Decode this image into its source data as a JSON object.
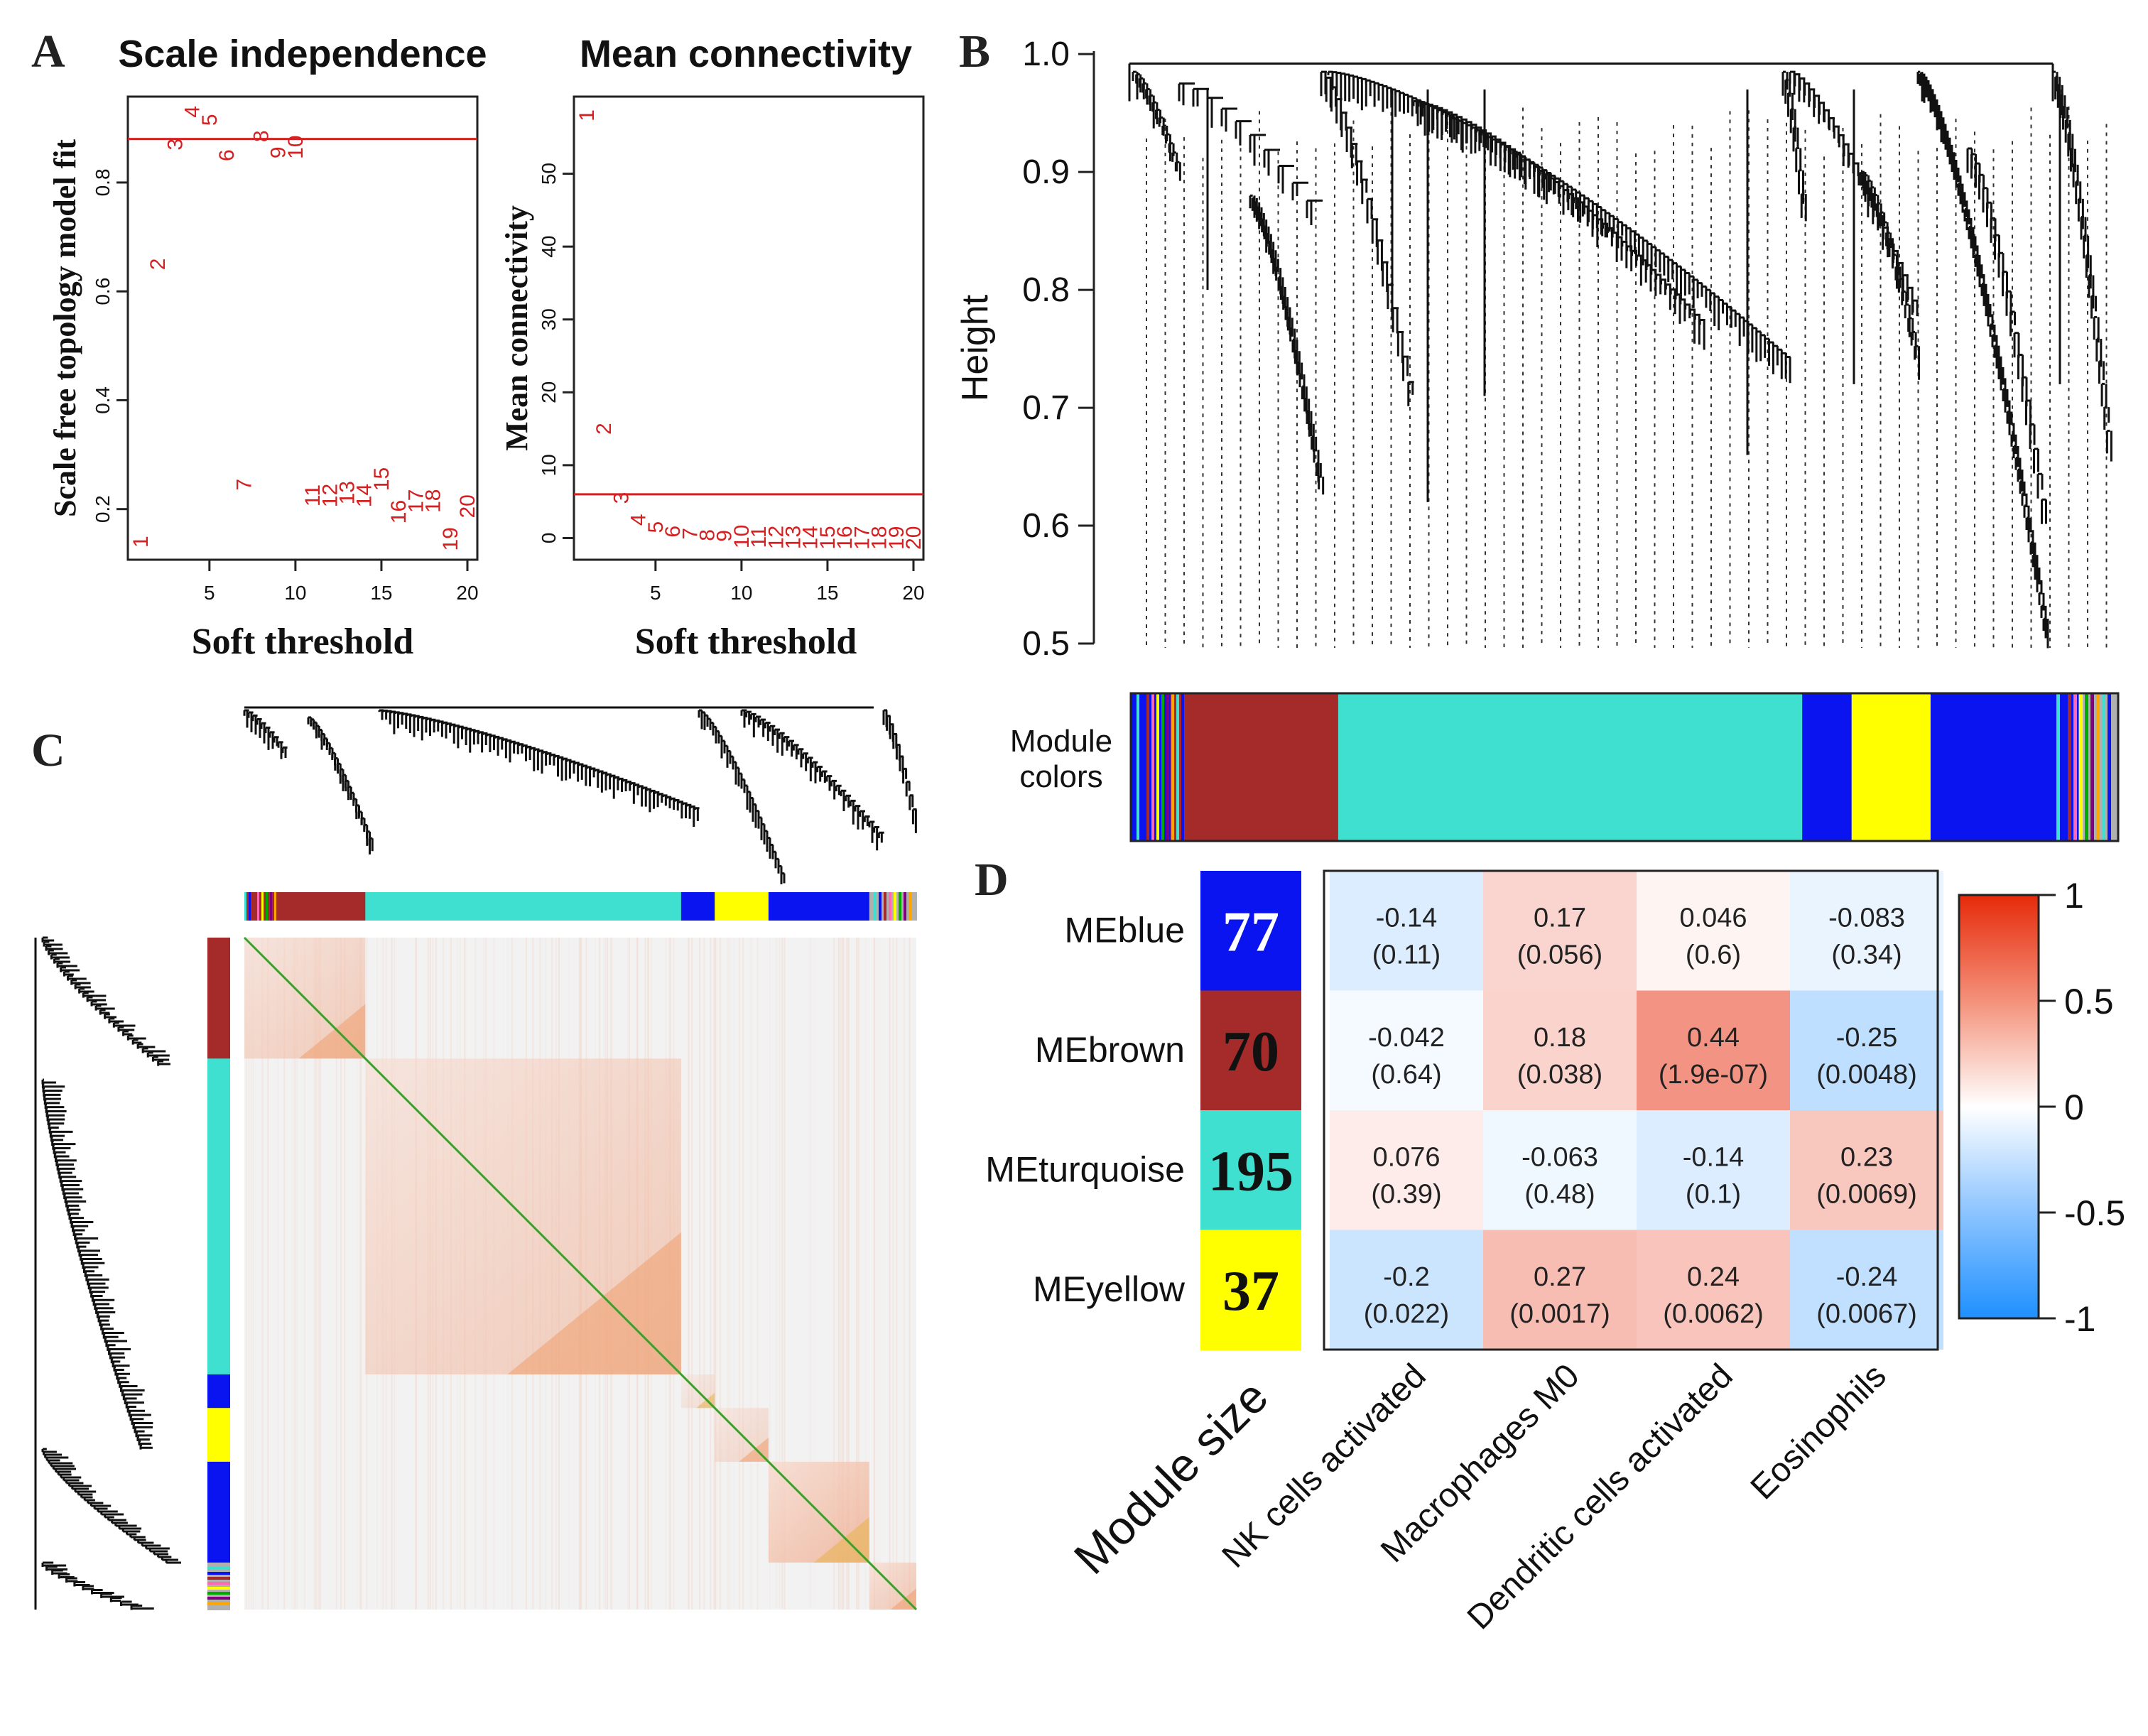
{
  "panels": {
    "a": {
      "label": "A"
    },
    "b": {
      "label": "B"
    },
    "c": {
      "label": "C"
    },
    "d": {
      "label": "D"
    }
  },
  "colors": {
    "red": "#d42020",
    "blue": "#0a14f0",
    "brown": "#a52a2a",
    "turquoise": "#40e0d0",
    "yellow": "#ffff00",
    "heat_low": "#1e90ff",
    "heat_mid": "#ffffff",
    "heat_high": "#e62a0a"
  },
  "chart_data": [
    {
      "id": "scale_independence",
      "type": "scatter",
      "title": "Scale independence",
      "xlabel": "Soft threshold",
      "ylabel": "Scale free topology model fit",
      "xlim": [
        1,
        20
      ],
      "ylim": [
        0.12,
        0.95
      ],
      "xticks": [
        "5",
        "10",
        "15",
        "20"
      ],
      "yticks": [
        "0.2",
        "0.4",
        "0.6",
        "0.8"
      ],
      "threshold_line": 0.88,
      "points": [
        {
          "label": "1",
          "x": 1,
          "y": 0.14
        },
        {
          "label": "2",
          "x": 2,
          "y": 0.65
        },
        {
          "label": "3",
          "x": 3,
          "y": 0.87
        },
        {
          "label": "4",
          "x": 4,
          "y": 0.93
        },
        {
          "label": "5",
          "x": 5,
          "y": 0.915
        },
        {
          "label": "6",
          "x": 6,
          "y": 0.85
        },
        {
          "label": "7",
          "x": 7,
          "y": 0.245
        },
        {
          "label": "8",
          "x": 8,
          "y": 0.885
        },
        {
          "label": "9",
          "x": 9,
          "y": 0.855
        },
        {
          "label": "10",
          "x": 10,
          "y": 0.865
        },
        {
          "label": "11",
          "x": 11,
          "y": 0.225
        },
        {
          "label": "12",
          "x": 12,
          "y": 0.225
        },
        {
          "label": "13",
          "x": 13,
          "y": 0.23
        },
        {
          "label": "14",
          "x": 14,
          "y": 0.225
        },
        {
          "label": "15",
          "x": 15,
          "y": 0.255
        },
        {
          "label": "16",
          "x": 16,
          "y": 0.195
        },
        {
          "label": "17",
          "x": 17,
          "y": 0.215
        },
        {
          "label": "18",
          "x": 18,
          "y": 0.215
        },
        {
          "label": "19",
          "x": 19,
          "y": 0.145
        },
        {
          "label": "20",
          "x": 20,
          "y": 0.205
        }
      ]
    },
    {
      "id": "mean_connectivity",
      "type": "scatter",
      "title": "Mean connectivity",
      "xlabel": "Soft threshold",
      "ylabel": "Mean connectivity",
      "xlim": [
        1,
        20
      ],
      "ylim": [
        -2,
        60
      ],
      "xticks": [
        "5",
        "10",
        "15",
        "20"
      ],
      "yticks": [
        "0",
        "10",
        "20",
        "30",
        "40",
        "50"
      ],
      "threshold_line": 6,
      "points": [
        {
          "label": "1",
          "x": 1,
          "y": 58
        },
        {
          "label": "2",
          "x": 2,
          "y": 15
        },
        {
          "label": "3",
          "x": 3,
          "y": 5.5
        },
        {
          "label": "4",
          "x": 4,
          "y": 2.5
        },
        {
          "label": "5",
          "x": 5,
          "y": 1.5
        },
        {
          "label": "6",
          "x": 6,
          "y": 0.9
        },
        {
          "label": "7",
          "x": 7,
          "y": 0.6
        },
        {
          "label": "8",
          "x": 8,
          "y": 0.4
        },
        {
          "label": "9",
          "x": 9,
          "y": 0.3
        },
        {
          "label": "10",
          "x": 10,
          "y": 0.2
        },
        {
          "label": "11",
          "x": 11,
          "y": 0.15
        },
        {
          "label": "12",
          "x": 12,
          "y": 0.1
        },
        {
          "label": "13",
          "x": 13,
          "y": 0.1
        },
        {
          "label": "14",
          "x": 14,
          "y": 0.05
        },
        {
          "label": "15",
          "x": 15,
          "y": 0.05
        },
        {
          "label": "16",
          "x": 16,
          "y": 0.05
        },
        {
          "label": "17",
          "x": 17,
          "y": 0.03
        },
        {
          "label": "18",
          "x": 18,
          "y": 0.03
        },
        {
          "label": "19",
          "x": 19,
          "y": 0.02
        },
        {
          "label": "20",
          "x": 20,
          "y": 0.02
        }
      ]
    },
    {
      "id": "gene_dendrogram",
      "type": "dendrogram",
      "ylabel": "Height",
      "ylim": [
        0.5,
        1.0
      ],
      "yticks": [
        "0.5",
        "0.6",
        "0.7",
        "0.8",
        "0.9",
        "1.0"
      ],
      "color_bar_label_line1": "Module",
      "color_bar_label_line2": "colors",
      "module_order": [
        "blue",
        "brown",
        "turquoise",
        "blue",
        "yellow",
        "blue",
        "grey"
      ],
      "module_fractions": [
        0.04,
        0.17,
        0.47,
        0.05,
        0.08,
        0.15,
        0.04
      ]
    },
    {
      "id": "tom_heatmap",
      "type": "heatmap",
      "description": "Topological overlap matrix heatmap with dendrograms and module color bars",
      "module_order": [
        "brown",
        "turquoise",
        "blue",
        "yellow",
        "blue",
        "grey"
      ],
      "module_fractions": [
        0.18,
        0.47,
        0.05,
        0.08,
        0.15,
        0.07
      ]
    },
    {
      "id": "module_trait",
      "type": "heatmap",
      "rows": [
        "MEblue",
        "MEbrown",
        "MEturquoise",
        "MEyellow"
      ],
      "row_colors": [
        "#0a14f0",
        "#a52a2a",
        "#40e0d0",
        "#ffff00"
      ],
      "module_sizes": [
        "77",
        "70",
        "195",
        "37"
      ],
      "size_label": "Module size",
      "columns": [
        "NK cells activated",
        "Macrophages M0",
        "Dendritic cells activated",
        "Eosinophils"
      ],
      "values": [
        [
          -0.14,
          0.17,
          0.046,
          -0.083
        ],
        [
          -0.042,
          0.18,
          0.44,
          -0.25
        ],
        [
          0.076,
          -0.063,
          -0.14,
          0.23
        ],
        [
          -0.2,
          0.27,
          0.24,
          -0.24
        ]
      ],
      "value_labels": [
        [
          "-0.14",
          "0.17",
          "0.046",
          "-0.083"
        ],
        [
          "-0.042",
          "0.18",
          "0.44",
          "-0.25"
        ],
        [
          "0.076",
          "-0.063",
          "-0.14",
          "0.23"
        ],
        [
          "-0.2",
          "0.27",
          "0.24",
          "-0.24"
        ]
      ],
      "p_labels": [
        [
          "(0.11)",
          "(0.056)",
          "(0.6)",
          "(0.34)"
        ],
        [
          "(0.64)",
          "(0.038)",
          "(1.9e-07)",
          "(0.0048)"
        ],
        [
          "(0.39)",
          "(0.48)",
          "(0.1)",
          "(0.0069)"
        ],
        [
          "(0.022)",
          "(0.0017)",
          "(0.0062)",
          "(0.0067)"
        ]
      ],
      "legend_range": [
        -1,
        1
      ],
      "legend_ticks": [
        "1",
        "0.5",
        "0",
        "-0.5",
        "-1"
      ]
    }
  ]
}
